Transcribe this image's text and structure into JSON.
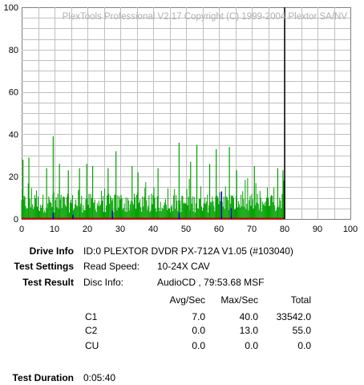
{
  "window": {
    "copyright": "PlexTools Professional V2.17 Copyright (C) 1999-2004 Plextor SA/NV"
  },
  "chart_data": {
    "type": "bar",
    "title": "",
    "xlabel": "",
    "ylabel": "",
    "xlim": [
      0,
      100
    ],
    "ylim": [
      0,
      100
    ],
    "x_ticks": [
      "0",
      "10",
      "20",
      "30",
      "40",
      "50",
      "60",
      "70",
      "80",
      "90",
      "100"
    ],
    "y_ticks": [
      "0",
      "20",
      "40",
      "60",
      "80",
      "100"
    ],
    "grid": true,
    "colors": {
      "c1": "#00a000",
      "c2": "#0000c8",
      "baseline": "#c80000",
      "end_marker": "#000000",
      "grid": "#c0c0c0"
    },
    "end_marker_x": 80,
    "c1_peaks": [
      {
        "x": 0.4,
        "y": 28
      },
      {
        "x": 2.2,
        "y": 29
      },
      {
        "x": 7.6,
        "y": 24
      },
      {
        "x": 9.6,
        "y": 39
      },
      {
        "x": 11.5,
        "y": 26
      },
      {
        "x": 14.2,
        "y": 23
      },
      {
        "x": 17.6,
        "y": 24
      },
      {
        "x": 19.8,
        "y": 26
      },
      {
        "x": 21.6,
        "y": 25
      },
      {
        "x": 26.3,
        "y": 24
      },
      {
        "x": 28.7,
        "y": 32
      },
      {
        "x": 33.6,
        "y": 25
      },
      {
        "x": 35.4,
        "y": 22
      },
      {
        "x": 41.5,
        "y": 24
      },
      {
        "x": 47.9,
        "y": 36
      },
      {
        "x": 51.4,
        "y": 27
      },
      {
        "x": 53.3,
        "y": 35
      },
      {
        "x": 57.2,
        "y": 26
      },
      {
        "x": 59.2,
        "y": 33
      },
      {
        "x": 63.2,
        "y": 34
      },
      {
        "x": 65.4,
        "y": 23
      },
      {
        "x": 70.8,
        "y": 25
      },
      {
        "x": 77.9,
        "y": 24
      },
      {
        "x": 79.5,
        "y": 23
      }
    ],
    "c2_spikes": [
      {
        "x": 9.6,
        "y": 3
      },
      {
        "x": 15.6,
        "y": 2
      },
      {
        "x": 27.6,
        "y": 4
      },
      {
        "x": 47.9,
        "y": 3
      },
      {
        "x": 60.8,
        "y": 13
      },
      {
        "x": 63.8,
        "y": 5
      }
    ]
  },
  "info": {
    "drive_info_label": "Drive Info",
    "drive_info_value": "ID:0 PLEXTOR DVDR PX-712A V1.05 (#103040)",
    "test_settings_label": "Test Settings",
    "read_speed_label": "Read Speed:",
    "read_speed_value": "10-24X CAV",
    "test_result_label": "Test Result",
    "disc_info_label": "Disc Info:",
    "disc_info_value": "AudioCD , 79:53.68 MSF",
    "test_duration_label": "Test Duration",
    "test_duration_value": "0:05:40"
  },
  "results": {
    "headers": [
      "Avg/Sec",
      "Max/Sec",
      "Total"
    ],
    "rows": [
      {
        "name": "C1",
        "avg": "7.0",
        "max": "40.0",
        "total": "33542.0"
      },
      {
        "name": "C2",
        "avg": "0.0",
        "max": "13.0",
        "total": "55.0"
      },
      {
        "name": "CU",
        "avg": "0.0",
        "max": "0.0",
        "total": "0.0"
      }
    ]
  }
}
